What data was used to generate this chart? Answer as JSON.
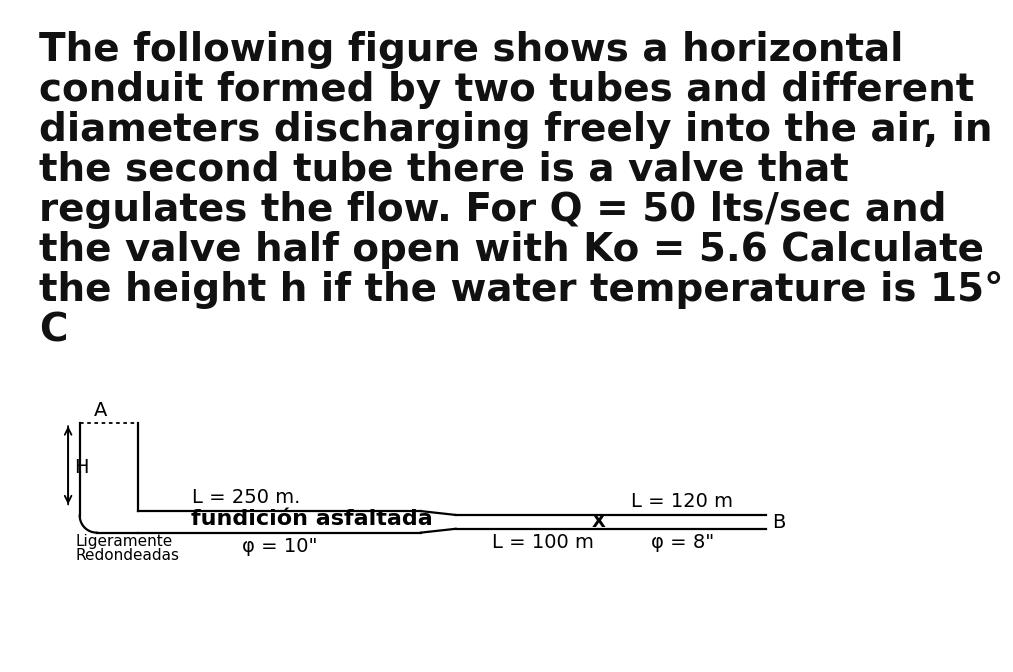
{
  "title_text": "The following figure shows a horizontal\nconduit formed by two tubes and different\ndiameters discharging freely into the air, in\nthe second tube there is a valve that\nregulates the flow. For Q = 50 lts/sec and\nthe valve half open with Ko = 5.6 Calculate\nthe height h if the water temperature is 15°\nC",
  "title_fontsize": 28,
  "bg_color": "#ffffff",
  "text_color": "#111111",
  "label_L250": "L = 250 m.",
  "label_L120": "L = 120 m",
  "label_L100": "L = 100 m",
  "label_fundicion": "fundición asfaltada",
  "label_ligeramente": "Ligeramente",
  "label_redondeadas": "Redondeadas",
  "label_phi10": "φ = 10\"",
  "label_phi8": "φ = 8\"",
  "label_A": "A",
  "label_H": "H",
  "label_B": "B",
  "label_X": "X"
}
